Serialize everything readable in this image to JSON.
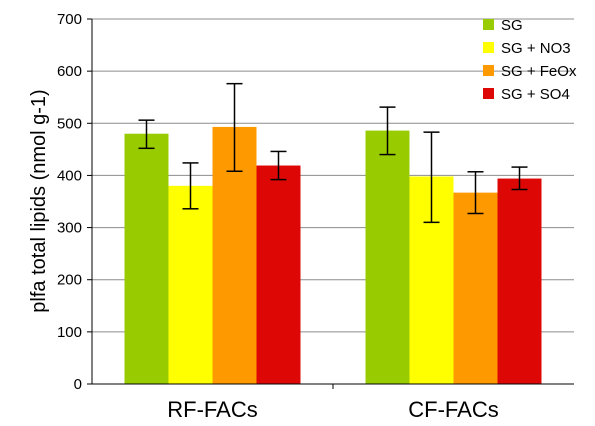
{
  "chart_data": {
    "type": "bar",
    "title": "",
    "xlabel": "",
    "ylabel": "plfa total lipids (nmol g-1)",
    "ylim": [
      0,
      700
    ],
    "yticks": [
      0,
      100,
      200,
      300,
      400,
      500,
      600,
      700
    ],
    "grid": true,
    "legend_position": "top-right",
    "categories": [
      "RF-FACs",
      "CF-FACs"
    ],
    "series": [
      {
        "name": "SG",
        "color": "#99cc00",
        "values": [
          480,
          486
        ],
        "error_low": [
          452,
          440
        ],
        "error_high": [
          506,
          531
        ]
      },
      {
        "name": "SG + NO3",
        "color": "#ffff00",
        "values": [
          380,
          398
        ],
        "error_low": [
          336,
          310
        ],
        "error_high": [
          424,
          483
        ]
      },
      {
        "name": "SG + FeOx",
        "color": "#ff9900",
        "values": [
          493,
          367
        ],
        "error_low": [
          408,
          327
        ],
        "error_high": [
          576,
          407
        ]
      },
      {
        "name": "SG + SO4",
        "color": "#dd0806",
        "values": [
          419,
          394
        ],
        "error_low": [
          392,
          373
        ],
        "error_high": [
          446,
          416
        ]
      }
    ]
  }
}
